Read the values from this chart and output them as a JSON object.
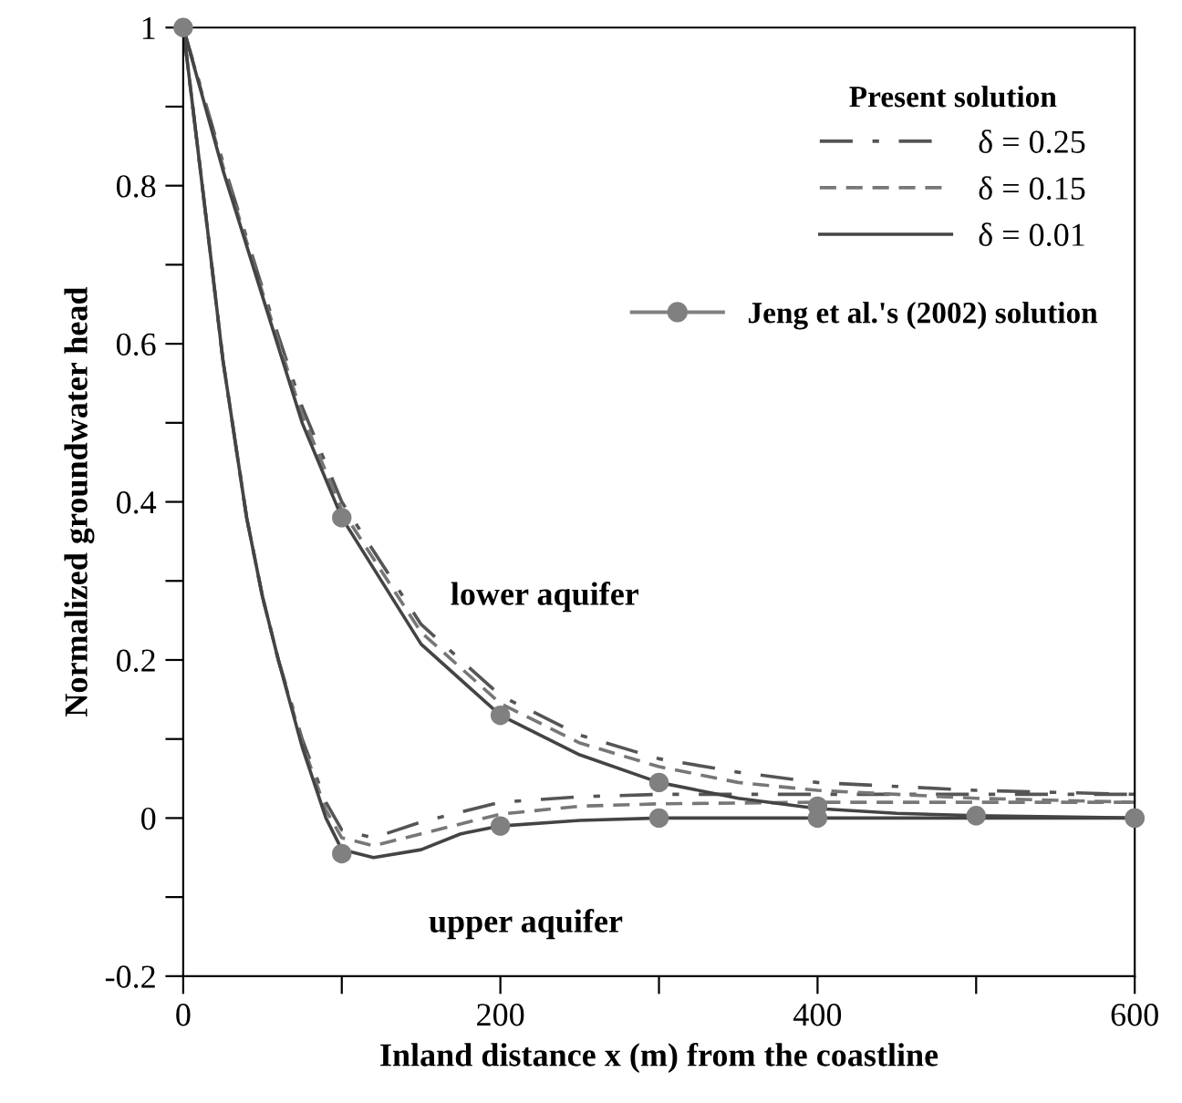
{
  "chart_data": {
    "type": "line",
    "xlabel": "Inland distance x (m) from the coastline",
    "ylabel": "Normalized groundwater head",
    "legend_title": "Present solution",
    "legend": "top right",
    "xlim": [
      0,
      600
    ],
    "ylim": [
      -0.2,
      1
    ],
    "xticks": [
      0,
      {
        "value": 100,
        "label": null
      },
      200,
      {
        "value": 300,
        "label": null
      },
      400,
      {
        "value": 500,
        "label": null
      },
      600
    ],
    "yticks": [
      -0.2,
      {
        "value": -0.1,
        "label": null
      },
      0,
      {
        "value": 0.1,
        "label": null
      },
      0.2,
      {
        "value": 0.3,
        "label": null
      },
      0.4,
      {
        "value": 0.5,
        "label": null
      },
      0.6,
      {
        "value": 0.7,
        "label": null
      },
      0.8,
      {
        "value": 0.9,
        "label": null
      },
      1
    ],
    "grid": false,
    "annotations": [
      "lower aquifer",
      "upper aquifer"
    ],
    "series": [
      {
        "name": "δ = 0.25",
        "color": "#555555",
        "line_style": "dashdot",
        "marker": "none",
        "x": [
          0,
          25,
          50,
          75,
          100,
          150,
          200,
          250,
          300,
          350,
          400,
          450,
          500,
          600
        ],
        "values": [
          1,
          0.83,
          0.67,
          0.52,
          0.4,
          0.245,
          0.155,
          0.105,
          0.075,
          0.058,
          0.045,
          0.04,
          0.035,
          0.03
        ]
      },
      {
        "color": "#555555",
        "line_style": "dashdot",
        "marker": "none",
        "x": [
          0,
          15,
          25,
          40,
          50,
          60,
          75,
          90,
          100,
          120,
          150,
          200,
          250,
          300,
          400,
          600
        ],
        "values": [
          1,
          0.75,
          0.58,
          0.38,
          0.28,
          0.2,
          0.1,
          0.02,
          -0.015,
          -0.025,
          -0.005,
          0.02,
          0.027,
          0.03,
          0.03,
          0.03
        ]
      },
      {
        "name": "δ = 0.15",
        "color": "#777777",
        "line_style": "dashed",
        "marker": "none",
        "x": [
          0,
          25,
          50,
          75,
          100,
          150,
          200,
          250,
          300,
          350,
          400,
          450,
          500,
          600
        ],
        "values": [
          1,
          0.825,
          0.665,
          0.51,
          0.39,
          0.235,
          0.145,
          0.095,
          0.065,
          0.045,
          0.035,
          0.03,
          0.025,
          0.02
        ]
      },
      {
        "color": "#777777",
        "line_style": "dashed",
        "marker": "none",
        "x": [
          0,
          15,
          25,
          40,
          50,
          60,
          75,
          90,
          100,
          120,
          150,
          200,
          250,
          300,
          400,
          600
        ],
        "values": [
          1,
          0.75,
          0.58,
          0.38,
          0.28,
          0.2,
          0.095,
          0.01,
          -0.025,
          -0.035,
          -0.02,
          0.005,
          0.015,
          0.018,
          0.02,
          0.02
        ]
      },
      {
        "name": "δ = 0.01",
        "color": "#444444",
        "line_style": "solid",
        "marker": "none",
        "x": [
          0,
          25,
          50,
          75,
          100,
          150,
          200,
          250,
          300,
          350,
          400,
          450,
          500,
          600
        ],
        "values": [
          1,
          0.82,
          0.66,
          0.5,
          0.38,
          0.22,
          0.13,
          0.08,
          0.045,
          0.025,
          0.012,
          0.006,
          0.003,
          0
        ]
      },
      {
        "color": "#444444",
        "line_style": "solid",
        "marker": "none",
        "x": [
          0,
          15,
          25,
          40,
          50,
          60,
          75,
          90,
          100,
          120,
          150,
          175,
          200,
          250,
          300,
          400,
          600
        ],
        "values": [
          1,
          0.75,
          0.58,
          0.38,
          0.28,
          0.2,
          0.09,
          0.0,
          -0.04,
          -0.05,
          -0.04,
          -0.02,
          -0.01,
          -0.003,
          0,
          0,
          0
        ]
      },
      {
        "name": "Jeng et al.'s (2002) solution",
        "type": "scatter",
        "color": "#808080",
        "marker": "circle",
        "x": [
          0,
          100,
          200,
          300,
          400,
          500,
          600
        ],
        "values": [
          1,
          0.38,
          0.13,
          0.045,
          0.015,
          0.003,
          0
        ]
      },
      {
        "type": "scatter",
        "color": "#808080",
        "marker": "circle",
        "x": [
          100,
          200,
          300,
          400,
          600
        ],
        "values": [
          -0.045,
          -0.01,
          0,
          0,
          0
        ]
      }
    ]
  }
}
